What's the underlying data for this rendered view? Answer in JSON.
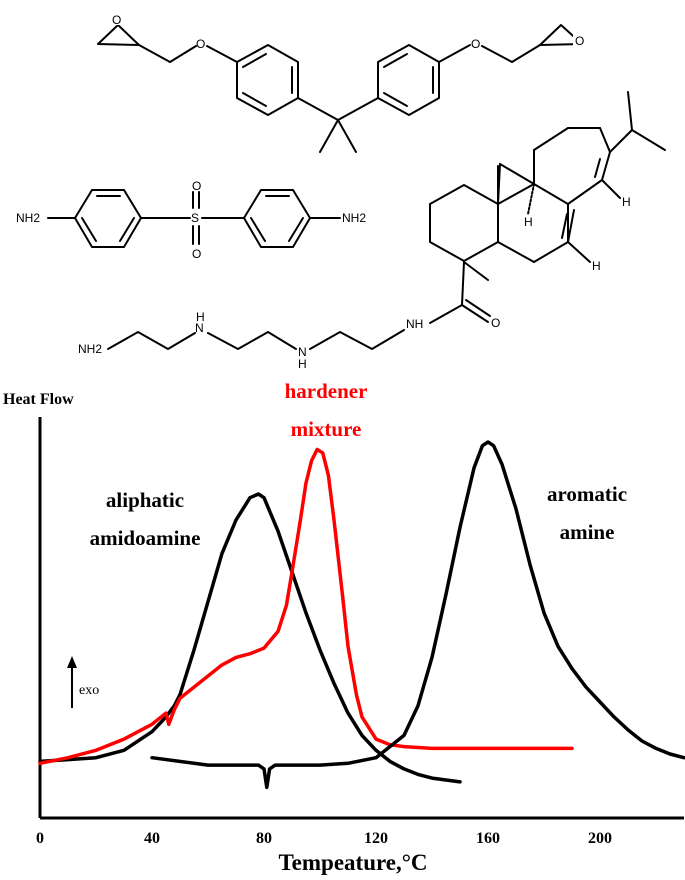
{
  "structures": {
    "atom_labels": {
      "oxygen": "O",
      "nitrogen_h": "NH",
      "amine_h2": "NH2",
      "amine_h": "H",
      "sulfur": "S",
      "hydrogen": "H",
      "nitrogen": "N"
    }
  },
  "chart_data": {
    "type": "line",
    "ylabel": "Heat Flow",
    "xlabel": "Tempeature,°C",
    "xlim": [
      0,
      230
    ],
    "x_ticks": [
      "0",
      "40",
      "80",
      "120",
      "160",
      "200"
    ],
    "x_tick_values": [
      0,
      40,
      80,
      120,
      160,
      200
    ],
    "y_units": "arbitrary",
    "ylim": [
      0,
      100
    ],
    "exo_marker": "exo",
    "series": [
      {
        "name": "aliphatic amidoamine",
        "label_lines": [
          "aliphatic",
          "amidoamine"
        ],
        "color": "#000000",
        "x": [
          0,
          10,
          20,
          30,
          40,
          45,
          48,
          50,
          55,
          60,
          65,
          70,
          75,
          78,
          80,
          85,
          90,
          95,
          100,
          105,
          110,
          115,
          120,
          125,
          130,
          135,
          140,
          145,
          150
        ],
        "y": [
          5,
          5.5,
          6,
          8,
          13,
          17,
          20,
          23,
          35,
          48,
          61,
          70,
          76,
          77,
          76,
          67,
          56,
          45,
          35,
          26,
          18,
          12,
          8,
          5,
          3,
          1.5,
          0.5,
          0,
          -0.5
        ]
      },
      {
        "name": "hardener mixture",
        "label_lines": [
          "hardener",
          "mixture"
        ],
        "color": "#ff0000",
        "x": [
          0,
          10,
          20,
          30,
          40,
          45,
          46,
          48,
          50,
          55,
          60,
          65,
          70,
          75,
          80,
          85,
          88,
          90,
          93,
          95,
          97,
          99,
          101,
          103,
          105,
          108,
          110,
          113,
          115,
          120,
          125,
          130,
          140,
          150,
          160,
          170,
          180,
          190
        ],
        "y": [
          4.5,
          6,
          8,
          11,
          15,
          18,
          15,
          19,
          22,
          25,
          28,
          31,
          33,
          34,
          35.5,
          40,
          47,
          56,
          70,
          80,
          86,
          89,
          88,
          82,
          70,
          50,
          36,
          23,
          17,
          11,
          9.5,
          9,
          8.5,
          8.5,
          8.5,
          8.5,
          8.5,
          8.5
        ]
      },
      {
        "name": "aromatic amine",
        "label_lines": [
          "aromatic",
          "amine"
        ],
        "color": "#000000",
        "x": [
          40,
          60,
          70,
          78,
          80,
          81,
          82,
          84,
          90,
          100,
          110,
          120,
          130,
          135,
          140,
          145,
          150,
          155,
          158,
          160,
          162,
          165,
          170,
          175,
          180,
          185,
          190,
          195,
          200,
          205,
          210,
          215,
          220,
          225,
          230
        ],
        "y": [
          6,
          4,
          4,
          4,
          3,
          -2,
          3,
          4,
          4,
          4,
          4.5,
          6,
          12,
          20,
          33,
          50,
          68,
          84,
          90,
          91,
          90,
          85,
          73,
          58,
          45,
          36,
          30,
          25,
          21,
          17,
          13.5,
          10.5,
          8.5,
          7,
          6
        ]
      }
    ]
  }
}
